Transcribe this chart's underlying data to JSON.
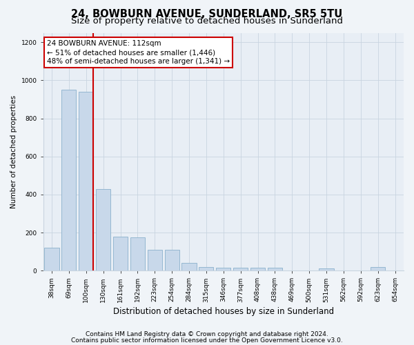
{
  "title": "24, BOWBURN AVENUE, SUNDERLAND, SR5 5TU",
  "subtitle": "Size of property relative to detached houses in Sunderland",
  "xlabel": "Distribution of detached houses by size in Sunderland",
  "ylabel": "Number of detached properties",
  "categories": [
    "38sqm",
    "69sqm",
    "100sqm",
    "130sqm",
    "161sqm",
    "192sqm",
    "223sqm",
    "254sqm",
    "284sqm",
    "315sqm",
    "346sqm",
    "377sqm",
    "408sqm",
    "438sqm",
    "469sqm",
    "500sqm",
    "531sqm",
    "562sqm",
    "592sqm",
    "623sqm",
    "654sqm"
  ],
  "values": [
    120,
    950,
    940,
    430,
    180,
    175,
    110,
    110,
    40,
    20,
    15,
    15,
    15,
    15,
    0,
    0,
    10,
    0,
    0,
    20,
    0
  ],
  "bar_color": "#c8d8ea",
  "bar_edge_color": "#8ab0cc",
  "highlight_index": 2,
  "highlight_color": "#cc0000",
  "ylim": [
    0,
    1250
  ],
  "yticks": [
    0,
    200,
    400,
    600,
    800,
    1000,
    1200
  ],
  "annotation_text": "24 BOWBURN AVENUE: 112sqm\n← 51% of detached houses are smaller (1,446)\n48% of semi-detached houses are larger (1,341) →",
  "annotation_box_color": "#ffffff",
  "annotation_box_edge": "#cc0000",
  "footer_line1": "Contains HM Land Registry data © Crown copyright and database right 2024.",
  "footer_line2": "Contains public sector information licensed under the Open Government Licence v3.0.",
  "title_fontsize": 10.5,
  "subtitle_fontsize": 9.5,
  "xlabel_fontsize": 8.5,
  "ylabel_fontsize": 7.5,
  "tick_fontsize": 6.5,
  "footer_fontsize": 6.5,
  "annotation_fontsize": 7.5,
  "background_color": "#f0f4f8",
  "plot_bg_color": "#e8eef5",
  "grid_color": "#c8d4e0"
}
